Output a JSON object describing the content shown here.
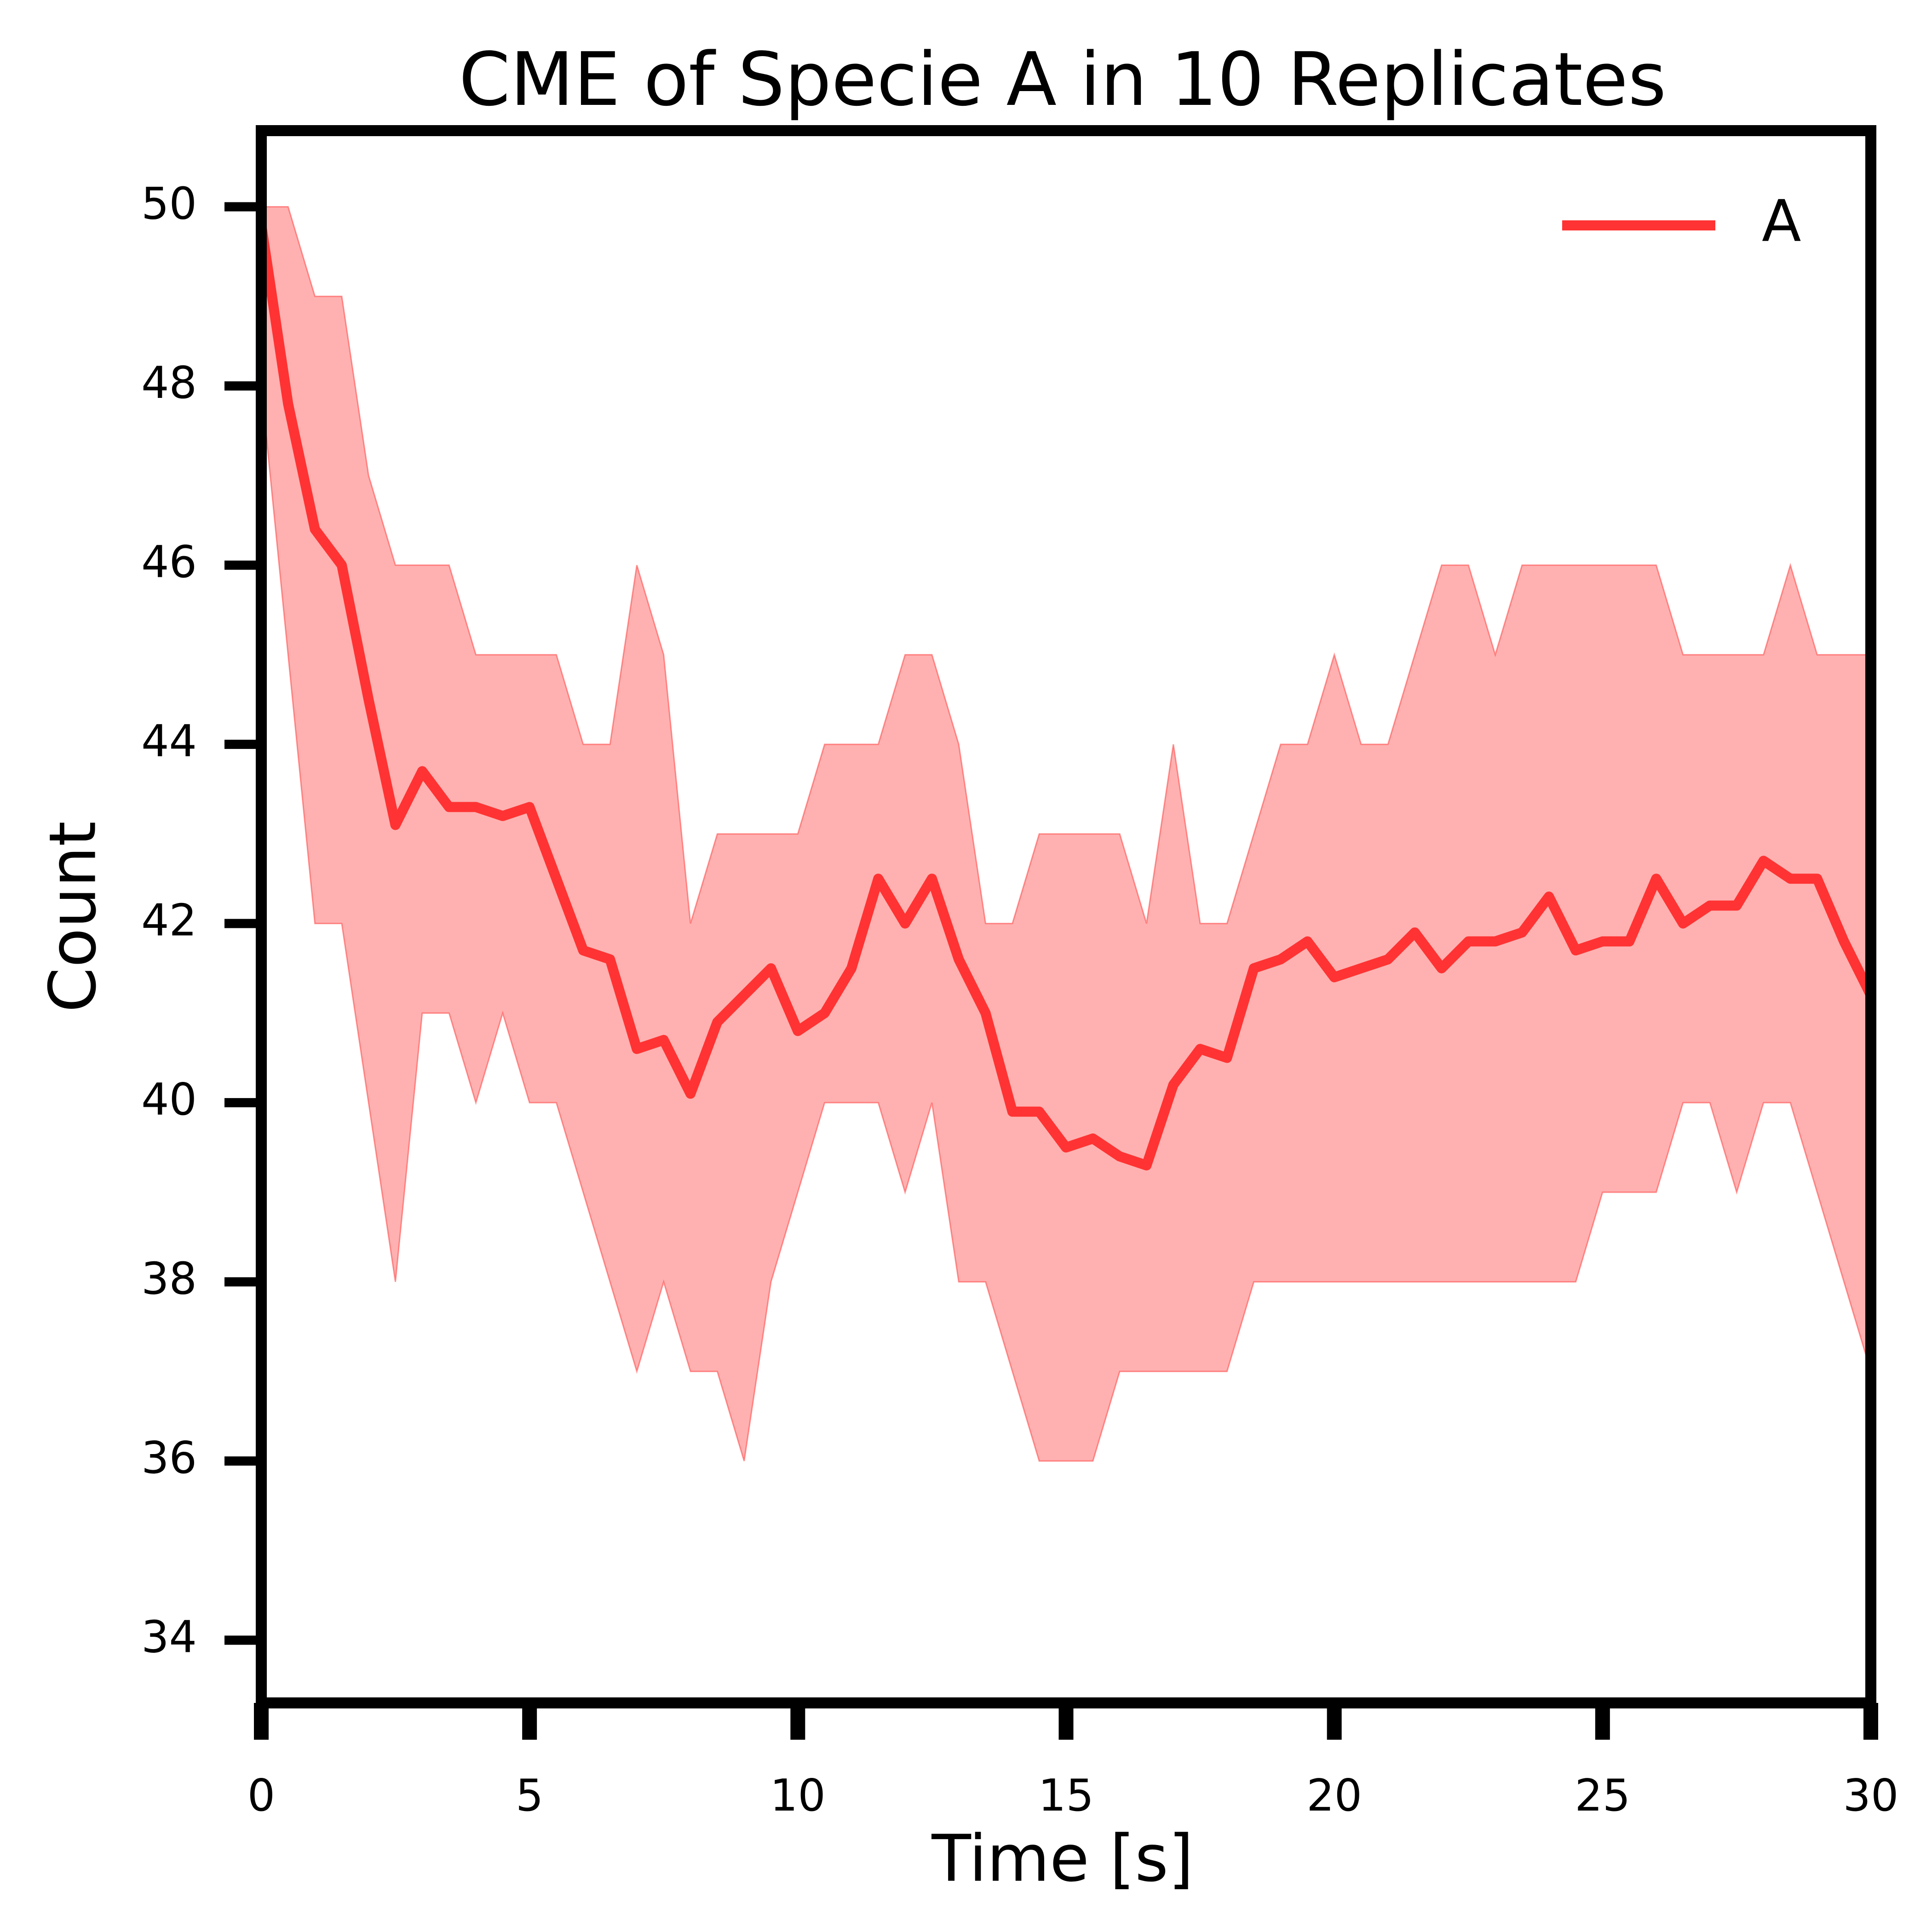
{
  "chart_data": {
    "type": "line",
    "title": "CME of Specie A in 10 Replicates",
    "x_label": "Time [s]",
    "y_label": "Count",
    "x": [
      0,
      0.5,
      1,
      1.5,
      2,
      2.5,
      3,
      3.5,
      4,
      4.5,
      5,
      5.5,
      6,
      6.5,
      7,
      7.5,
      8,
      8.5,
      9,
      9.5,
      10,
      10.5,
      11,
      11.5,
      12,
      12.5,
      13,
      13.5,
      14,
      14.5,
      15,
      15.5,
      16,
      16.5,
      17,
      17.5,
      18,
      18.5,
      19,
      19.5,
      20,
      20.5,
      21,
      21.5,
      22,
      22.5,
      23,
      23.5,
      24,
      24.5,
      25,
      25.5,
      26,
      26.5,
      27,
      27.5,
      28,
      28.5,
      29,
      29.5,
      30
    ],
    "series": [
      {
        "name": "A",
        "color": "#ff3333",
        "values": [
          49.8,
          47.8,
          46.4,
          46.0,
          44.5,
          43.1,
          43.7,
          43.3,
          43.3,
          43.2,
          43.3,
          42.5,
          41.7,
          41.6,
          40.6,
          40.7,
          40.1,
          40.9,
          41.2,
          41.5,
          40.8,
          41.0,
          41.5,
          42.5,
          42.0,
          42.5,
          41.6,
          41.0,
          39.9,
          39.9,
          39.5,
          39.6,
          39.4,
          39.3,
          40.2,
          40.6,
          40.5,
          41.5,
          41.6,
          41.8,
          41.4,
          41.5,
          41.6,
          41.9,
          41.5,
          41.8,
          41.8,
          41.9,
          42.3,
          41.7,
          41.8,
          41.8,
          42.5,
          42.0,
          42.2,
          42.2,
          42.7,
          42.5,
          42.5,
          41.8,
          41.2
        ]
      }
    ],
    "band": {
      "color": "#ff3333",
      "upper": [
        50,
        50,
        49,
        49,
        47,
        46,
        46,
        46,
        45,
        45,
        45,
        45,
        44,
        44,
        46,
        45,
        42,
        43,
        43,
        43,
        43,
        44,
        44,
        44,
        45,
        45,
        44,
        42,
        42,
        43,
        43,
        43,
        43,
        42,
        44,
        42,
        42,
        43,
        44,
        44,
        45,
        44,
        44,
        45,
        46,
        46,
        45,
        46,
        46,
        46,
        46,
        46,
        46,
        45,
        45,
        45,
        45,
        46,
        45,
        45,
        45
      ],
      "lower": [
        48,
        45,
        42,
        42,
        40,
        38,
        41,
        41,
        40,
        41,
        40,
        40,
        39,
        38,
        37,
        38,
        37,
        37,
        36,
        38,
        39,
        40,
        40,
        40,
        39,
        40,
        38,
        38,
        37,
        36,
        36,
        36,
        37,
        37,
        37,
        37,
        37,
        38,
        38,
        38,
        38,
        38,
        38,
        38,
        38,
        38,
        38,
        38,
        38,
        38,
        39,
        39,
        39,
        40,
        40,
        39,
        40,
        40,
        39,
        38,
        37
      ]
    },
    "xlim": [
      0,
      30
    ],
    "ylim": [
      33.3,
      50.85
    ],
    "xticks": [
      0,
      5,
      10,
      15,
      20,
      25,
      30
    ],
    "yticks": [
      34,
      36,
      38,
      40,
      42,
      44,
      46,
      48,
      50
    ],
    "legend": "upper right"
  }
}
